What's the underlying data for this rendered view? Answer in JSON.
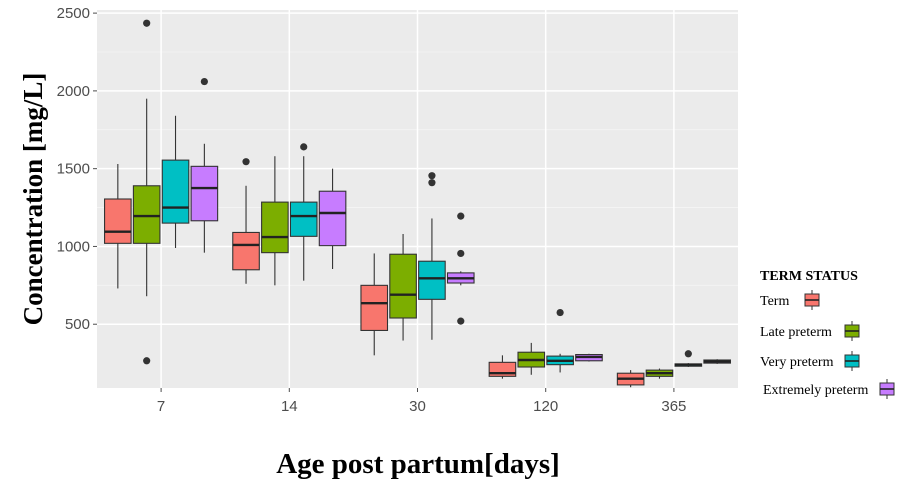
{
  "chart_data": {
    "type": "box",
    "title": "",
    "xlabel": "Age post partum[days]",
    "ylabel": "Concentration [mg/L]",
    "ylim": [
      90,
      2520
    ],
    "yticks": [
      500,
      1000,
      1500,
      2000,
      2500
    ],
    "ytick_labels": [
      "500",
      "1000",
      "1500",
      "2000",
      "2500"
    ],
    "categories": [
      "7",
      "14",
      "30",
      "120",
      "365"
    ],
    "grid": true,
    "legend": {
      "title": "TERM STATUS",
      "position": "right"
    },
    "series": [
      {
        "name": "Term",
        "color": "#f8766d",
        "boxes": [
          {
            "min": 730,
            "q1": 1020,
            "median": 1095,
            "q3": 1305,
            "max": 1530,
            "outliers": []
          },
          {
            "min": 760,
            "q1": 850,
            "median": 1010,
            "q3": 1090,
            "max": 1390,
            "outliers": [
              1545
            ]
          },
          {
            "min": 300,
            "q1": 460,
            "median": 635,
            "q3": 750,
            "max": 955,
            "outliers": []
          },
          {
            "min": 150,
            "q1": 165,
            "median": 185,
            "q3": 255,
            "max": 300,
            "outliers": []
          },
          {
            "min": 95,
            "q1": 110,
            "median": 150,
            "q3": 185,
            "max": 205,
            "outliers": []
          }
        ]
      },
      {
        "name": "Late preterm",
        "color": "#7cae00",
        "boxes": [
          {
            "min": 680,
            "q1": 1020,
            "median": 1195,
            "q3": 1390,
            "max": 1950,
            "outliers": [
              265,
              2435
            ]
          },
          {
            "min": 750,
            "q1": 960,
            "median": 1060,
            "q3": 1285,
            "max": 1580,
            "outliers": []
          },
          {
            "min": 395,
            "q1": 540,
            "median": 690,
            "q3": 950,
            "max": 1080,
            "outliers": []
          },
          {
            "min": 175,
            "q1": 225,
            "median": 270,
            "q3": 320,
            "max": 380,
            "outliers": []
          },
          {
            "min": 150,
            "q1": 165,
            "median": 185,
            "q3": 205,
            "max": 215,
            "outliers": []
          }
        ]
      },
      {
        "name": "Very preterm",
        "color": "#00bfc4",
        "boxes": [
          {
            "min": 990,
            "q1": 1150,
            "median": 1250,
            "q3": 1555,
            "max": 1840,
            "outliers": []
          },
          {
            "min": 780,
            "q1": 1065,
            "median": 1195,
            "q3": 1285,
            "max": 1580,
            "outliers": [
              1640
            ]
          },
          {
            "min": 400,
            "q1": 660,
            "median": 795,
            "q3": 905,
            "max": 1180,
            "outliers": [
              1410,
              1455
            ]
          },
          {
            "min": 190,
            "q1": 240,
            "median": 265,
            "q3": 295,
            "max": 310,
            "outliers": [
              575
            ]
          },
          {
            "min": 225,
            "q1": 230,
            "median": 240,
            "q3": 245,
            "max": 250,
            "outliers": [
              310
            ]
          }
        ]
      },
      {
        "name": "Extremely preterm",
        "color": "#c77cff",
        "boxes": [
          {
            "min": 960,
            "q1": 1165,
            "median": 1375,
            "q3": 1515,
            "max": 1660,
            "outliers": [
              2060
            ]
          },
          {
            "min": 855,
            "q1": 1005,
            "median": 1215,
            "q3": 1355,
            "max": 1500,
            "outliers": []
          },
          {
            "min": 750,
            "q1": 765,
            "median": 795,
            "q3": 830,
            "max": 840,
            "outliers": [
              520,
              955,
              1195
            ]
          },
          {
            "min": 260,
            "q1": 265,
            "median": 290,
            "q3": 305,
            "max": 310,
            "outliers": []
          },
          {
            "min": 245,
            "q1": 250,
            "median": 260,
            "q3": 270,
            "max": 275,
            "outliers": []
          }
        ]
      }
    ]
  }
}
